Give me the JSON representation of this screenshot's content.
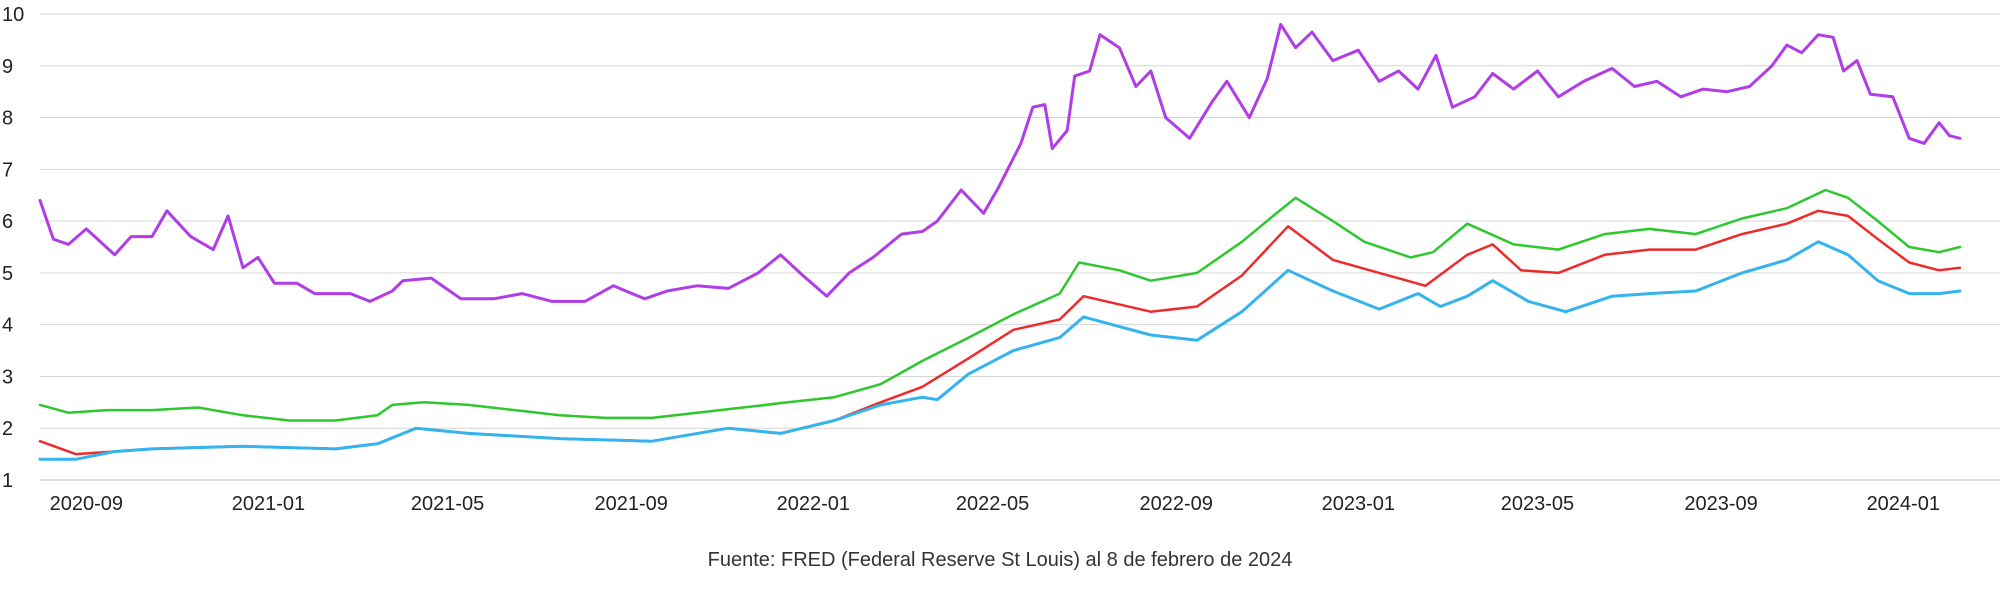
{
  "chart_data": {
    "type": "line",
    "title": "",
    "xlabel": "",
    "ylabel": "",
    "ylim": [
      1,
      10
    ],
    "xlim": [
      "2020-08-01",
      "2024-02-08"
    ],
    "grid": "horizontal",
    "legend": "none",
    "y_ticks": [
      "1",
      "2",
      "3",
      "4",
      "5",
      "6",
      "7",
      "8",
      "9",
      "10"
    ],
    "x_ticks": [
      {
        "date": "2020-09-01",
        "label": "2020-09"
      },
      {
        "date": "2021-01-01",
        "label": "2021-01"
      },
      {
        "date": "2021-05-01",
        "label": "2021-05"
      },
      {
        "date": "2021-09-01",
        "label": "2021-09"
      },
      {
        "date": "2022-01-01",
        "label": "2022-01"
      },
      {
        "date": "2022-05-01",
        "label": "2022-05"
      },
      {
        "date": "2022-09-01",
        "label": "2022-09"
      },
      {
        "date": "2023-01-01",
        "label": "2023-01"
      },
      {
        "date": "2023-05-01",
        "label": "2023-05"
      },
      {
        "date": "2023-09-01",
        "label": "2023-09"
      },
      {
        "date": "2024-01-01",
        "label": "2024-01"
      }
    ],
    "series": [
      {
        "color": "#b03de6",
        "width": 3,
        "points": [
          [
            "2020-08-01",
            6.4
          ],
          [
            "2020-08-10",
            5.65
          ],
          [
            "2020-08-20",
            5.55
          ],
          [
            "2020-09-01",
            5.85
          ],
          [
            "2020-09-20",
            5.35
          ],
          [
            "2020-10-01",
            5.7
          ],
          [
            "2020-10-15",
            5.7
          ],
          [
            "2020-10-25",
            6.2
          ],
          [
            "2020-11-10",
            5.7
          ],
          [
            "2020-11-25",
            5.45
          ],
          [
            "2020-12-05",
            6.1
          ],
          [
            "2020-12-15",
            5.1
          ],
          [
            "2020-12-25",
            5.3
          ],
          [
            "2021-01-05",
            4.8
          ],
          [
            "2021-01-20",
            4.8
          ],
          [
            "2021-02-01",
            4.6
          ],
          [
            "2021-02-25",
            4.6
          ],
          [
            "2021-03-10",
            4.45
          ],
          [
            "2021-03-25",
            4.65
          ],
          [
            "2021-04-01",
            4.85
          ],
          [
            "2021-04-20",
            4.9
          ],
          [
            "2021-05-10",
            4.5
          ],
          [
            "2021-06-01",
            4.5
          ],
          [
            "2021-06-20",
            4.6
          ],
          [
            "2021-07-10",
            4.45
          ],
          [
            "2021-08-01",
            4.45
          ],
          [
            "2021-08-20",
            4.75
          ],
          [
            "2021-09-10",
            4.5
          ],
          [
            "2021-09-25",
            4.65
          ],
          [
            "2021-10-15",
            4.75
          ],
          [
            "2021-11-05",
            4.7
          ],
          [
            "2021-11-25",
            5.0
          ],
          [
            "2021-12-10",
            5.35
          ],
          [
            "2021-12-25",
            4.95
          ],
          [
            "2022-01-10",
            4.55
          ],
          [
            "2022-01-25",
            5.0
          ],
          [
            "2022-02-10",
            5.3
          ],
          [
            "2022-03-01",
            5.75
          ],
          [
            "2022-03-15",
            5.8
          ],
          [
            "2022-03-25",
            6.0
          ],
          [
            "2022-04-10",
            6.6
          ],
          [
            "2022-04-25",
            6.15
          ],
          [
            "2022-05-05",
            6.65
          ],
          [
            "2022-05-20",
            7.5
          ],
          [
            "2022-05-28",
            8.2
          ],
          [
            "2022-06-05",
            8.25
          ],
          [
            "2022-06-10",
            7.4
          ],
          [
            "2022-06-20",
            7.75
          ],
          [
            "2022-06-25",
            8.8
          ],
          [
            "2022-07-05",
            8.9
          ],
          [
            "2022-07-12",
            9.6
          ],
          [
            "2022-07-25",
            9.35
          ],
          [
            "2022-08-05",
            8.6
          ],
          [
            "2022-08-15",
            8.9
          ],
          [
            "2022-08-25",
            8.0
          ],
          [
            "2022-09-10",
            7.6
          ],
          [
            "2022-09-25",
            8.3
          ],
          [
            "2022-10-05",
            8.7
          ],
          [
            "2022-10-20",
            8.0
          ],
          [
            "2022-11-01",
            8.75
          ],
          [
            "2022-11-10",
            9.8
          ],
          [
            "2022-11-20",
            9.35
          ],
          [
            "2022-12-01",
            9.65
          ],
          [
            "2022-12-15",
            9.1
          ],
          [
            "2023-01-01",
            9.3
          ],
          [
            "2023-01-15",
            8.7
          ],
          [
            "2023-01-28",
            8.9
          ],
          [
            "2023-02-10",
            8.55
          ],
          [
            "2023-02-22",
            9.2
          ],
          [
            "2023-03-05",
            8.2
          ],
          [
            "2023-03-20",
            8.4
          ],
          [
            "2023-04-01",
            8.85
          ],
          [
            "2023-04-15",
            8.55
          ],
          [
            "2023-05-01",
            8.9
          ],
          [
            "2023-05-15",
            8.4
          ],
          [
            "2023-06-01",
            8.7
          ],
          [
            "2023-06-20",
            8.95
          ],
          [
            "2023-07-05",
            8.6
          ],
          [
            "2023-07-20",
            8.7
          ],
          [
            "2023-08-05",
            8.4
          ],
          [
            "2023-08-20",
            8.55
          ],
          [
            "2023-09-05",
            8.5
          ],
          [
            "2023-09-20",
            8.6
          ],
          [
            "2023-10-05",
            9.0
          ],
          [
            "2023-10-15",
            9.4
          ],
          [
            "2023-10-25",
            9.25
          ],
          [
            "2023-11-05",
            9.6
          ],
          [
            "2023-11-15",
            9.55
          ],
          [
            "2023-11-22",
            8.9
          ],
          [
            "2023-12-01",
            9.1
          ],
          [
            "2023-12-10",
            8.45
          ],
          [
            "2023-12-25",
            8.4
          ],
          [
            "2024-01-05",
            7.6
          ],
          [
            "2024-01-15",
            7.5
          ],
          [
            "2024-01-25",
            7.9
          ],
          [
            "2024-02-01",
            7.65
          ],
          [
            "2024-02-08",
            7.6
          ]
        ]
      },
      {
        "color": "#2ec72e",
        "width": 2.5,
        "points": [
          [
            "2020-08-01",
            2.45
          ],
          [
            "2020-08-20",
            2.3
          ],
          [
            "2020-09-15",
            2.35
          ],
          [
            "2020-10-15",
            2.35
          ],
          [
            "2020-11-15",
            2.4
          ],
          [
            "2020-12-15",
            2.25
          ],
          [
            "2021-01-15",
            2.15
          ],
          [
            "2021-02-15",
            2.15
          ],
          [
            "2021-03-15",
            2.25
          ],
          [
            "2021-03-25",
            2.45
          ],
          [
            "2021-04-15",
            2.5
          ],
          [
            "2021-05-15",
            2.45
          ],
          [
            "2021-06-15",
            2.35
          ],
          [
            "2021-07-15",
            2.25
          ],
          [
            "2021-08-15",
            2.2
          ],
          [
            "2021-09-15",
            2.2
          ],
          [
            "2021-10-15",
            2.3
          ],
          [
            "2021-11-15",
            2.4
          ],
          [
            "2021-12-15",
            2.5
          ],
          [
            "2022-01-15",
            2.6
          ],
          [
            "2022-02-15",
            2.85
          ],
          [
            "2022-03-15",
            3.3
          ],
          [
            "2022-04-15",
            3.75
          ],
          [
            "2022-05-15",
            4.2
          ],
          [
            "2022-06-15",
            4.6
          ],
          [
            "2022-06-28",
            5.2
          ],
          [
            "2022-07-25",
            5.05
          ],
          [
            "2022-08-15",
            4.85
          ],
          [
            "2022-09-15",
            5.0
          ],
          [
            "2022-10-15",
            5.6
          ],
          [
            "2022-11-05",
            6.1
          ],
          [
            "2022-11-20",
            6.45
          ],
          [
            "2022-12-15",
            6.0
          ],
          [
            "2023-01-05",
            5.6
          ],
          [
            "2023-02-05",
            5.3
          ],
          [
            "2023-02-20",
            5.4
          ],
          [
            "2023-03-15",
            5.95
          ],
          [
            "2023-04-15",
            5.55
          ],
          [
            "2023-05-15",
            5.45
          ],
          [
            "2023-06-15",
            5.75
          ],
          [
            "2023-07-15",
            5.85
          ],
          [
            "2023-08-15",
            5.75
          ],
          [
            "2023-09-15",
            6.05
          ],
          [
            "2023-10-15",
            6.25
          ],
          [
            "2023-11-10",
            6.6
          ],
          [
            "2023-11-25",
            6.45
          ],
          [
            "2023-12-15",
            6.0
          ],
          [
            "2024-01-05",
            5.5
          ],
          [
            "2024-01-25",
            5.4
          ],
          [
            "2024-02-08",
            5.5
          ]
        ]
      },
      {
        "color": "#ee2b2b",
        "width": 2.5,
        "points": [
          [
            "2020-08-01",
            1.75
          ],
          [
            "2020-08-25",
            1.5
          ],
          [
            "2020-09-20",
            1.55
          ],
          [
            "2020-10-15",
            1.6
          ],
          [
            "2020-12-15",
            1.65
          ],
          [
            "2021-02-15",
            1.6
          ],
          [
            "2021-03-15",
            1.7
          ],
          [
            "2021-04-10",
            2.0
          ],
          [
            "2021-05-15",
            1.9
          ],
          [
            "2021-07-15",
            1.8
          ],
          [
            "2021-09-15",
            1.75
          ],
          [
            "2021-11-05",
            2.0
          ],
          [
            "2021-12-10",
            1.9
          ],
          [
            "2022-01-15",
            2.15
          ],
          [
            "2022-02-15",
            2.5
          ],
          [
            "2022-03-15",
            2.8
          ],
          [
            "2022-04-15",
            3.35
          ],
          [
            "2022-05-15",
            3.9
          ],
          [
            "2022-06-15",
            4.1
          ],
          [
            "2022-07-01",
            4.55
          ],
          [
            "2022-08-15",
            4.25
          ],
          [
            "2022-09-15",
            4.35
          ],
          [
            "2022-10-15",
            4.95
          ],
          [
            "2022-11-15",
            5.9
          ],
          [
            "2022-12-15",
            5.25
          ],
          [
            "2023-01-15",
            5.0
          ],
          [
            "2023-02-15",
            4.75
          ],
          [
            "2023-03-15",
            5.35
          ],
          [
            "2023-04-01",
            5.55
          ],
          [
            "2023-04-20",
            5.05
          ],
          [
            "2023-05-15",
            5.0
          ],
          [
            "2023-06-15",
            5.35
          ],
          [
            "2023-07-15",
            5.45
          ],
          [
            "2023-08-15",
            5.45
          ],
          [
            "2023-09-15",
            5.75
          ],
          [
            "2023-10-15",
            5.95
          ],
          [
            "2023-11-05",
            6.2
          ],
          [
            "2023-11-25",
            6.1
          ],
          [
            "2023-12-15",
            5.65
          ],
          [
            "2024-01-05",
            5.2
          ],
          [
            "2024-01-25",
            5.05
          ],
          [
            "2024-02-08",
            5.1
          ]
        ]
      },
      {
        "color": "#34b3ef",
        "width": 3,
        "points": [
          [
            "2020-08-01",
            1.4
          ],
          [
            "2020-08-25",
            1.4
          ],
          [
            "2020-09-20",
            1.55
          ],
          [
            "2020-10-15",
            1.6
          ],
          [
            "2020-12-15",
            1.65
          ],
          [
            "2021-02-15",
            1.6
          ],
          [
            "2021-03-15",
            1.7
          ],
          [
            "2021-04-10",
            2.0
          ],
          [
            "2021-05-15",
            1.9
          ],
          [
            "2021-07-15",
            1.8
          ],
          [
            "2021-09-15",
            1.75
          ],
          [
            "2021-11-05",
            2.0
          ],
          [
            "2021-12-10",
            1.9
          ],
          [
            "2022-01-15",
            2.15
          ],
          [
            "2022-02-15",
            2.45
          ],
          [
            "2022-03-15",
            2.6
          ],
          [
            "2022-03-25",
            2.55
          ],
          [
            "2022-04-15",
            3.05
          ],
          [
            "2022-05-15",
            3.5
          ],
          [
            "2022-06-15",
            3.75
          ],
          [
            "2022-07-01",
            4.15
          ],
          [
            "2022-08-15",
            3.8
          ],
          [
            "2022-09-15",
            3.7
          ],
          [
            "2022-10-15",
            4.25
          ],
          [
            "2022-11-15",
            5.05
          ],
          [
            "2022-12-15",
            4.65
          ],
          [
            "2023-01-15",
            4.3
          ],
          [
            "2023-02-10",
            4.6
          ],
          [
            "2023-02-25",
            4.35
          ],
          [
            "2023-03-15",
            4.55
          ],
          [
            "2023-04-01",
            4.85
          ],
          [
            "2023-04-25",
            4.45
          ],
          [
            "2023-05-20",
            4.25
          ],
          [
            "2023-06-20",
            4.55
          ],
          [
            "2023-07-15",
            4.6
          ],
          [
            "2023-08-15",
            4.65
          ],
          [
            "2023-09-15",
            5.0
          ],
          [
            "2023-10-15",
            5.25
          ],
          [
            "2023-11-05",
            5.6
          ],
          [
            "2023-11-25",
            5.35
          ],
          [
            "2023-12-15",
            4.85
          ],
          [
            "2024-01-05",
            4.6
          ],
          [
            "2024-01-25",
            4.6
          ],
          [
            "2024-02-08",
            4.65
          ]
        ]
      }
    ]
  },
  "source_note": "Fuente: FRED (Federal Reserve St Louis) al 8 de febrero de 2024"
}
